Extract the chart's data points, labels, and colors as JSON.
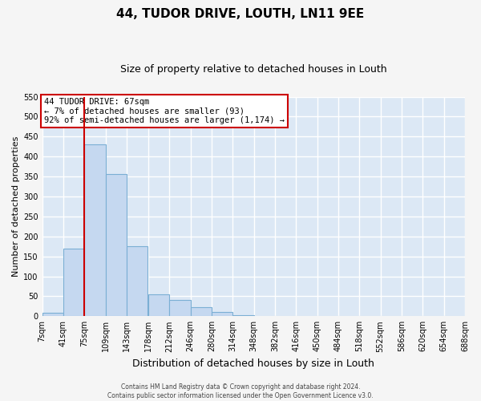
{
  "title": "44, TUDOR DRIVE, LOUTH, LN11 9EE",
  "subtitle": "Size of property relative to detached houses in Louth",
  "xlabel": "Distribution of detached houses by size in Louth",
  "ylabel": "Number of detached properties",
  "bar_color": "#c5d8f0",
  "bar_edge_color": "#7bafd4",
  "background_color": "#dce8f5",
  "grid_color": "#ffffff",
  "fig_background": "#f5f5f5",
  "bin_edges": [
    7,
    41,
    75,
    109,
    143,
    178,
    212,
    246,
    280,
    314,
    348,
    382,
    416,
    450,
    484,
    518,
    552,
    586,
    620,
    654,
    688
  ],
  "bar_heights": [
    8,
    170,
    430,
    357,
    175,
    55,
    40,
    22,
    10,
    2,
    1,
    0,
    0,
    1,
    0,
    0,
    0,
    0,
    0,
    1
  ],
  "x_tick_labels": [
    "7sqm",
    "41sqm",
    "75sqm",
    "109sqm",
    "143sqm",
    "178sqm",
    "212sqm",
    "246sqm",
    "280sqm",
    "314sqm",
    "348sqm",
    "382sqm",
    "416sqm",
    "450sqm",
    "484sqm",
    "518sqm",
    "552sqm",
    "586sqm",
    "620sqm",
    "654sqm",
    "688sqm"
  ],
  "ylim": [
    0,
    550
  ],
  "yticks": [
    0,
    50,
    100,
    150,
    200,
    250,
    300,
    350,
    400,
    450,
    500,
    550
  ],
  "property_line_x": 75,
  "property_line_color": "#cc0000",
  "annotation_text": "44 TUDOR DRIVE: 67sqm\n← 7% of detached houses are smaller (93)\n92% of semi-detached houses are larger (1,174) →",
  "annotation_box_edge_color": "#cc0000",
  "annotation_box_fill": "#ffffff",
  "footer_line1": "Contains HM Land Registry data © Crown copyright and database right 2024.",
  "footer_line2": "Contains public sector information licensed under the Open Government Licence v3.0.",
  "title_fontsize": 11,
  "subtitle_fontsize": 9,
  "xlabel_fontsize": 9,
  "ylabel_fontsize": 8,
  "tick_fontsize": 7,
  "annotation_fontsize": 7.5,
  "footer_fontsize": 5.5
}
